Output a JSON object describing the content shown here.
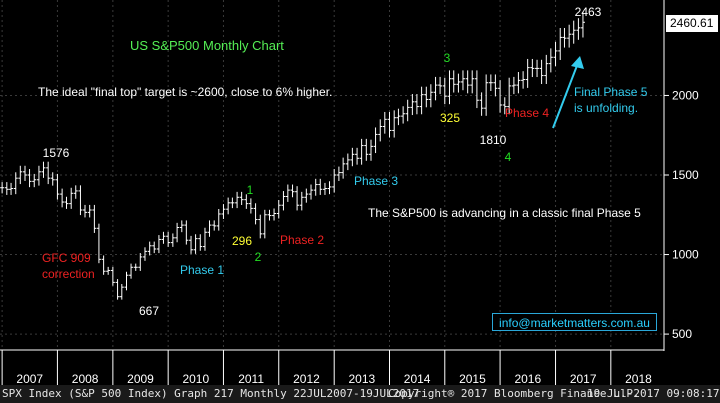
{
  "chart_data": {
    "type": "ohlc",
    "title": "US S&P500 Monthly Chart",
    "xlabel": "",
    "ylabel": "",
    "ylim": [
      400,
      2600
    ],
    "xlim": [
      "2007-01",
      "2018-12"
    ],
    "y_ticks": [
      500,
      1000,
      1500,
      2000
    ],
    "x_ticks": [
      "2007",
      "2008",
      "2009",
      "2010",
      "2011",
      "2012",
      "2013",
      "2014",
      "2015",
      "2016",
      "2017",
      "2018"
    ],
    "grid": true,
    "last_price_label": "2460.61",
    "series": [
      {
        "name": "",
        "points": [
          [
            "2007-01",
            1420
          ],
          [
            "2007-02",
            1410
          ],
          [
            "2007-03",
            1415
          ],
          [
            "2007-04",
            1480
          ],
          [
            "2007-05",
            1520
          ],
          [
            "2007-06",
            1500
          ],
          [
            "2007-07",
            1460
          ],
          [
            "2007-08",
            1470
          ],
          [
            "2007-09",
            1520
          ],
          [
            "2007-10",
            1545
          ],
          [
            "2007-11",
            1480
          ],
          [
            "2007-12",
            1470
          ],
          [
            "2008-01",
            1380
          ],
          [
            "2008-02",
            1330
          ],
          [
            "2008-03",
            1320
          ],
          [
            "2008-04",
            1385
          ],
          [
            "2008-05",
            1400
          ],
          [
            "2008-06",
            1280
          ],
          [
            "2008-07",
            1265
          ],
          [
            "2008-08",
            1280
          ],
          [
            "2008-09",
            1165
          ],
          [
            "2008-10",
            970
          ],
          [
            "2008-11",
            895
          ],
          [
            "2008-12",
            900
          ],
          [
            "2009-01",
            825
          ],
          [
            "2009-02",
            735
          ],
          [
            "2009-03",
            795
          ],
          [
            "2009-04",
            870
          ],
          [
            "2009-05",
            920
          ],
          [
            "2009-06",
            920
          ],
          [
            "2009-07",
            985
          ],
          [
            "2009-08",
            1020
          ],
          [
            "2009-09",
            1055
          ],
          [
            "2009-10",
            1035
          ],
          [
            "2009-11",
            1095
          ],
          [
            "2009-12",
            1115
          ],
          [
            "2010-01",
            1075
          ],
          [
            "2010-02",
            1105
          ],
          [
            "2010-03",
            1170
          ],
          [
            "2010-04",
            1185
          ],
          [
            "2010-05",
            1090
          ],
          [
            "2010-06",
            1030
          ],
          [
            "2010-07",
            1100
          ],
          [
            "2010-08",
            1050
          ],
          [
            "2010-09",
            1140
          ],
          [
            "2010-10",
            1185
          ],
          [
            "2010-11",
            1180
          ],
          [
            "2010-12",
            1255
          ],
          [
            "2011-01",
            1285
          ],
          [
            "2011-02",
            1325
          ],
          [
            "2011-03",
            1325
          ],
          [
            "2011-04",
            1360
          ],
          [
            "2011-05",
            1345
          ],
          [
            "2011-06",
            1320
          ],
          [
            "2011-07",
            1290
          ],
          [
            "2011-08",
            1220
          ],
          [
            "2011-09",
            1130
          ],
          [
            "2011-10",
            1250
          ],
          [
            "2011-11",
            1245
          ],
          [
            "2011-12",
            1258
          ],
          [
            "2012-01",
            1310
          ],
          [
            "2012-02",
            1365
          ],
          [
            "2012-03",
            1405
          ],
          [
            "2012-04",
            1395
          ],
          [
            "2012-05",
            1310
          ],
          [
            "2012-06",
            1360
          ],
          [
            "2012-07",
            1380
          ],
          [
            "2012-08",
            1405
          ],
          [
            "2012-09",
            1440
          ],
          [
            "2012-10",
            1410
          ],
          [
            "2012-11",
            1415
          ],
          [
            "2012-12",
            1425
          ],
          [
            "2013-01",
            1500
          ],
          [
            "2013-02",
            1515
          ],
          [
            "2013-03",
            1570
          ],
          [
            "2013-04",
            1595
          ],
          [
            "2013-05",
            1630
          ],
          [
            "2013-06",
            1605
          ],
          [
            "2013-07",
            1685
          ],
          [
            "2013-08",
            1630
          ],
          [
            "2013-09",
            1680
          ],
          [
            "2013-10",
            1755
          ],
          [
            "2013-11",
            1805
          ],
          [
            "2013-12",
            1850
          ],
          [
            "2014-01",
            1780
          ],
          [
            "2014-02",
            1860
          ],
          [
            "2014-03",
            1870
          ],
          [
            "2014-04",
            1885
          ],
          [
            "2014-05",
            1925
          ],
          [
            "2014-06",
            1960
          ],
          [
            "2014-07",
            1930
          ],
          [
            "2014-08",
            2005
          ],
          [
            "2014-09",
            1975
          ],
          [
            "2014-10",
            2020
          ],
          [
            "2014-11",
            2065
          ],
          [
            "2014-12",
            2060
          ],
          [
            "2015-01",
            1995
          ],
          [
            "2015-02",
            2105
          ],
          [
            "2015-03",
            2070
          ],
          [
            "2015-04",
            2085
          ],
          [
            "2015-05",
            2105
          ],
          [
            "2015-06",
            2065
          ],
          [
            "2015-07",
            2105
          ],
          [
            "2015-08",
            1970
          ],
          [
            "2015-09",
            1920
          ],
          [
            "2015-10",
            2080
          ],
          [
            "2015-11",
            2080
          ],
          [
            "2015-12",
            2045
          ],
          [
            "2016-01",
            1940
          ],
          [
            "2016-02",
            1930
          ],
          [
            "2016-03",
            2060
          ],
          [
            "2016-04",
            2065
          ],
          [
            "2016-05",
            2095
          ],
          [
            "2016-06",
            2100
          ],
          [
            "2016-07",
            2175
          ],
          [
            "2016-08",
            2170
          ],
          [
            "2016-09",
            2170
          ],
          [
            "2016-10",
            2125
          ],
          [
            "2016-11",
            2200
          ],
          [
            "2016-12",
            2240
          ],
          [
            "2017-01",
            2280
          ],
          [
            "2017-02",
            2365
          ],
          [
            "2017-03",
            2360
          ],
          [
            "2017-04",
            2385
          ],
          [
            "2017-05",
            2410
          ],
          [
            "2017-06",
            2425
          ],
          [
            "2017-07",
            2460
          ]
        ]
      }
    ],
    "annotations": [
      {
        "text": "1576",
        "color": "#ffffff"
      },
      {
        "text": "667",
        "color": "#ffffff"
      },
      {
        "text": "2463",
        "color": "#ffffff"
      },
      {
        "text": "1810",
        "color": "#ffffff"
      },
      {
        "text": "325",
        "color": "#ffff33"
      },
      {
        "text": "296",
        "color": "#ffff33"
      },
      {
        "text": "1",
        "color": "#22dd22"
      },
      {
        "text": "2",
        "color": "#22dd22"
      },
      {
        "text": "3",
        "color": "#22dd22"
      },
      {
        "text": "4",
        "color": "#22dd22"
      },
      {
        "text": "Phase 1",
        "color": "#33ccee"
      },
      {
        "text": "Phase 2",
        "color": "#ee2222"
      },
      {
        "text": "Phase 3",
        "color": "#33ccee"
      },
      {
        "text": "Phase 4",
        "color": "#ee2222"
      },
      {
        "text": "GFC 909",
        "color": "#ee2222"
      },
      {
        "text": "correction",
        "color": "#ee2222"
      },
      {
        "text": "Final Phase 5",
        "color": "#33ccee"
      },
      {
        "text": "is unfolding.",
        "color": "#33ccee"
      },
      {
        "text": "The ideal \"final top\" target is ~2600, close to 6% higher.",
        "color": "#ffffff"
      },
      {
        "text": "The S&P500 is advancing in a classic final Phase 5",
        "color": "#ffffff"
      }
    ]
  },
  "colors": {
    "background": "#000000",
    "bars": "#ffffff",
    "grid": "#3a3a3a",
    "title": "#55ee55",
    "arrow": "#33ccee"
  },
  "email": "info@marketmatters.com.au",
  "footer": {
    "left": "SPX Index (S&P 500 Index) Graph 217  Monthly 22JUL2007-19JUL2017",
    "center": "Copyright® 2017 Bloomberg Finance L.P.",
    "right": "19-Jul-2017 09:08:17"
  }
}
